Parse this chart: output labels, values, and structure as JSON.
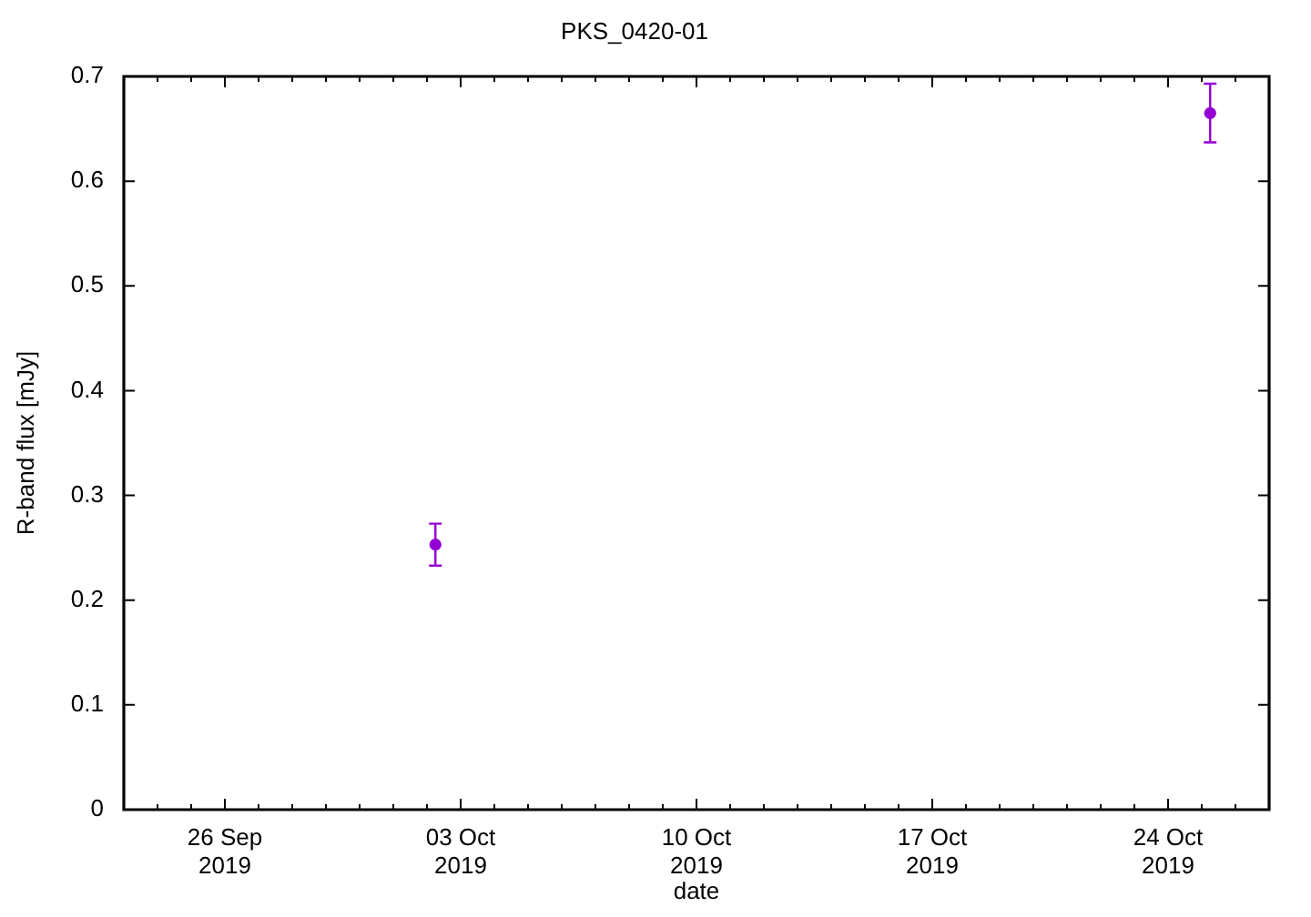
{
  "chart_data": {
    "type": "scatter",
    "title": "PKS_0420-01",
    "xlabel": "date",
    "ylabel": "R-band flux [mJy]",
    "x": [
      "2019-10-02T06:00",
      "2019-10-25T06:00"
    ],
    "values": [
      0.253,
      0.665
    ],
    "errors": [
      0.02,
      0.028
    ],
    "color": "#9400d3",
    "marker": "circle",
    "legend": false,
    "xlim": [
      "2019-09-23",
      "2019-10-27"
    ],
    "xticks": [
      {
        "value": "2019-09-24",
        "label": null
      },
      {
        "value": "2019-09-25",
        "label": null
      },
      {
        "value": "2019-09-26",
        "label": "26 Sep 2019"
      },
      {
        "value": "2019-09-27",
        "label": null
      },
      {
        "value": "2019-09-28",
        "label": null
      },
      {
        "value": "2019-09-29",
        "label": null
      },
      {
        "value": "2019-09-30",
        "label": null
      },
      {
        "value": "2019-10-01",
        "label": null
      },
      {
        "value": "2019-10-02",
        "label": null
      },
      {
        "value": "2019-10-03",
        "label": "03 Oct 2019"
      },
      {
        "value": "2019-10-04",
        "label": null
      },
      {
        "value": "2019-10-05",
        "label": null
      },
      {
        "value": "2019-10-06",
        "label": null
      },
      {
        "value": "2019-10-07",
        "label": null
      },
      {
        "value": "2019-10-08",
        "label": null
      },
      {
        "value": "2019-10-09",
        "label": null
      },
      {
        "value": "2019-10-10",
        "label": "10 Oct 2019"
      },
      {
        "value": "2019-10-11",
        "label": null
      },
      {
        "value": "2019-10-12",
        "label": null
      },
      {
        "value": "2019-10-13",
        "label": null
      },
      {
        "value": "2019-10-14",
        "label": null
      },
      {
        "value": "2019-10-15",
        "label": null
      },
      {
        "value": "2019-10-16",
        "label": null
      },
      {
        "value": "2019-10-17",
        "label": "17 Oct 2019"
      },
      {
        "value": "2019-10-18",
        "label": null
      },
      {
        "value": "2019-10-19",
        "label": null
      },
      {
        "value": "2019-10-20",
        "label": null
      },
      {
        "value": "2019-10-21",
        "label": null
      },
      {
        "value": "2019-10-22",
        "label": null
      },
      {
        "value": "2019-10-23",
        "label": null
      },
      {
        "value": "2019-10-24",
        "label": "24 Oct 2019"
      },
      {
        "value": "2019-10-25",
        "label": null
      },
      {
        "value": "2019-10-26",
        "label": null
      }
    ],
    "ylim": [
      0,
      0.7
    ],
    "yticks": [
      0,
      0.1,
      0.2,
      0.3,
      0.4,
      0.5,
      0.6,
      0.7
    ]
  }
}
